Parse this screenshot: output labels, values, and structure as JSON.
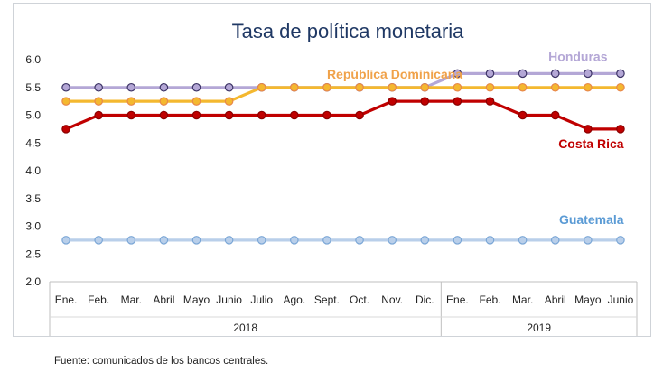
{
  "source_note": "Fuente: comunicados de los bancos centrales.",
  "chart_data": {
    "type": "line",
    "title": "Tasa de política monetaria",
    "xlabel": "",
    "ylabel": "",
    "ylim": [
      2.0,
      6.0
    ],
    "yticks": [
      "2.0",
      "2.5",
      "3.0",
      "3.5",
      "4.0",
      "4.5",
      "5.0",
      "5.5",
      "6.0"
    ],
    "grid": false,
    "categories": [
      "Ene.",
      "Feb.",
      "Mar.",
      "Abril",
      "Mayo",
      "Junio",
      "Julio",
      "Ago.",
      "Sept.",
      "Oct.",
      "Nov.",
      "Dic.",
      "Ene.",
      "Feb.",
      "Mar.",
      "Abril",
      "Mayo",
      "Junio"
    ],
    "year_groups": [
      {
        "label": "2018",
        "count": 12
      },
      {
        "label": "2019",
        "count": 6
      }
    ],
    "series": [
      {
        "name": "Honduras",
        "color": "#b4a7d6",
        "marker_edge": "#3d3466",
        "label_color": "#b4a7d6",
        "values": [
          5.5,
          5.5,
          5.5,
          5.5,
          5.5,
          5.5,
          5.5,
          5.5,
          5.5,
          5.5,
          5.5,
          5.5,
          5.75,
          5.75,
          5.75,
          5.75,
          5.75,
          5.75
        ]
      },
      {
        "name": "República Dominicana",
        "color": "#f4b82f",
        "marker_edge": "#e8884a",
        "label_color": "#f0a24a",
        "values": [
          5.25,
          5.25,
          5.25,
          5.25,
          5.25,
          5.25,
          5.5,
          5.5,
          5.5,
          5.5,
          5.5,
          5.5,
          5.5,
          5.5,
          5.5,
          5.5,
          5.5,
          5.5
        ]
      },
      {
        "name": "Costa Rica",
        "color": "#c00000",
        "marker_edge": "#8b0000",
        "label_color": "#c00000",
        "values": [
          4.75,
          5.0,
          5.0,
          5.0,
          5.0,
          5.0,
          5.0,
          5.0,
          5.0,
          5.0,
          5.25,
          5.25,
          5.25,
          5.25,
          5.0,
          5.0,
          4.75,
          4.75
        ]
      },
      {
        "name": "Guatemala",
        "color": "#b9cfea",
        "marker_edge": "#7aa6d6",
        "label_color": "#5b9bd5",
        "values": [
          2.75,
          2.75,
          2.75,
          2.75,
          2.75,
          2.75,
          2.75,
          2.75,
          2.75,
          2.75,
          2.75,
          2.75,
          2.75,
          2.75,
          2.75,
          2.75,
          2.75,
          2.75
        ]
      }
    ]
  }
}
